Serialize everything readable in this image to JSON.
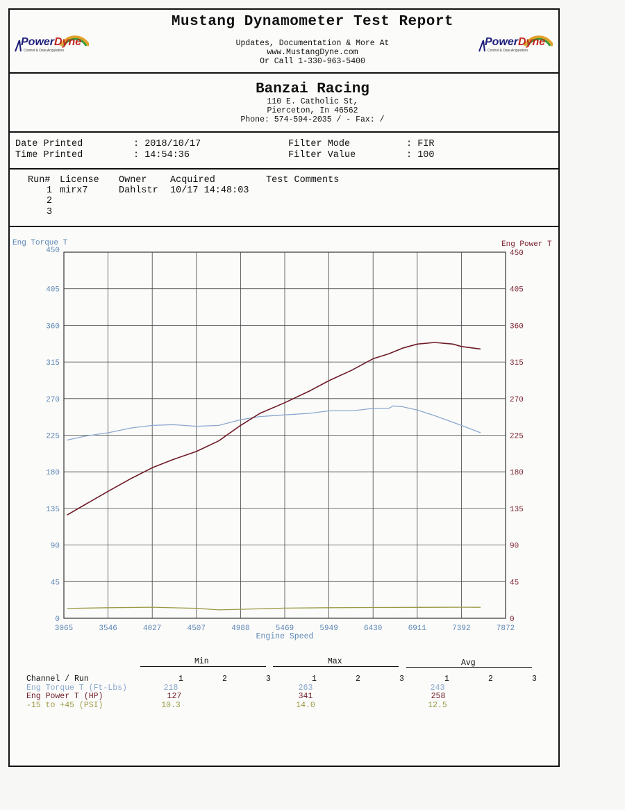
{
  "header": {
    "title": "Mustang Dynamometer Test Report",
    "line1": "Updates, Documentation & More At",
    "line2": "www.MustangDyne.com",
    "line3": "Or Call 1-330-963-5400",
    "logo_word_1": "Power",
    "logo_word_2": "Dyne",
    "logo_tag": "Control & Data Acquisition"
  },
  "shop": {
    "name": "Banzai Racing",
    "address1": "110 E. Catholic St,",
    "address2": "Pierceton, In  46562",
    "phone": "Phone: 574-594-2035 /  - Fax:  /"
  },
  "print_info": {
    "date_label": "Date Printed",
    "date_value": ": 2018/10/17",
    "time_label": "Time Printed",
    "time_value": ": 14:54:36",
    "filter_mode_label": "Filter Mode",
    "filter_mode_value": ": FIR",
    "filter_value_label": "Filter Value",
    "filter_value_value": ": 100"
  },
  "runs": {
    "headers": [
      "Run#",
      "License",
      "Owner",
      "Acquired",
      "Test Comments"
    ],
    "rows": [
      {
        "run": "1",
        "license": "mirx7",
        "owner": "Dahlstr",
        "acquired": "10/17 14:48:03",
        "comments": ""
      },
      {
        "run": "2",
        "license": "",
        "owner": "",
        "acquired": "",
        "comments": ""
      },
      {
        "run": "3",
        "license": "",
        "owner": "",
        "acquired": "",
        "comments": ""
      }
    ]
  },
  "chart_data": {
    "type": "line",
    "xlabel": "Engine Speed",
    "ylabel_left": "Eng Torque T",
    "ylabel_right": "Eng Power T",
    "xlim": [
      3065,
      7872
    ],
    "ylim": [
      0,
      450
    ],
    "x_ticks": [
      "3065",
      "3546",
      "4027",
      "4507",
      "4988",
      "5469",
      "5949",
      "6430",
      "6911",
      "7392",
      "7872"
    ],
    "y_ticks": [
      "0",
      "45",
      "90",
      "135",
      "180",
      "225",
      "270",
      "315",
      "360",
      "405",
      "450"
    ],
    "grid": true,
    "colors": {
      "torque": "#8aa8cf",
      "power": "#6e1a26",
      "pressure": "#9a9a45",
      "torque_axis": "#5b86b3",
      "power_axis": "#7a1f2c"
    },
    "series": [
      {
        "name": "Eng Torque T",
        "x": [
          3100,
          3300,
          3546,
          3800,
          4027,
          4250,
          4507,
          4750,
          4988,
          5200,
          5469,
          5750,
          5949,
          6200,
          6430,
          6600,
          6650,
          6750,
          6911,
          7100,
          7392,
          7600
        ],
        "values": [
          219,
          224,
          228,
          234,
          237,
          238,
          236,
          237,
          244,
          248,
          250,
          252,
          255,
          255,
          258,
          258,
          261,
          260,
          256,
          249,
          237,
          228
        ]
      },
      {
        "name": "Eng Power T",
        "x": [
          3100,
          3300,
          3546,
          3800,
          4027,
          4250,
          4507,
          4750,
          4988,
          5200,
          5469,
          5750,
          5949,
          6200,
          6430,
          6600,
          6750,
          6911,
          7100,
          7300,
          7392,
          7600
        ],
        "values": [
          127,
          140,
          156,
          172,
          185,
          195,
          205,
          218,
          237,
          252,
          265,
          280,
          292,
          305,
          319,
          325,
          332,
          337,
          339,
          337,
          334,
          331
        ]
      },
      {
        "name": "-15 to +45 (PSI)",
        "x": [
          3100,
          3546,
          4027,
          4507,
          4750,
          4988,
          5469,
          5949,
          6430,
          6911,
          7392,
          7600
        ],
        "values": [
          12.0,
          13.0,
          13.6,
          12.2,
          10.3,
          11.0,
          12.5,
          13.0,
          13.2,
          13.4,
          13.6,
          13.5
        ]
      }
    ]
  },
  "stats": {
    "groups": [
      "Min",
      "Max",
      "Avg"
    ],
    "channel_header": "Channel / Run",
    "run_labels": [
      "1",
      "2",
      "3"
    ],
    "rows": [
      {
        "label": "Eng Torque T (Ft-Lbs)",
        "min": "218",
        "max": "263",
        "avg": "243"
      },
      {
        "label": "Eng Power T (HP)",
        "min": "127",
        "max": "341",
        "avg": "258"
      },
      {
        "label": "-15 to +45 (PSI)",
        "min": "10.3",
        "max": "14.0",
        "avg": "12.5"
      }
    ]
  }
}
